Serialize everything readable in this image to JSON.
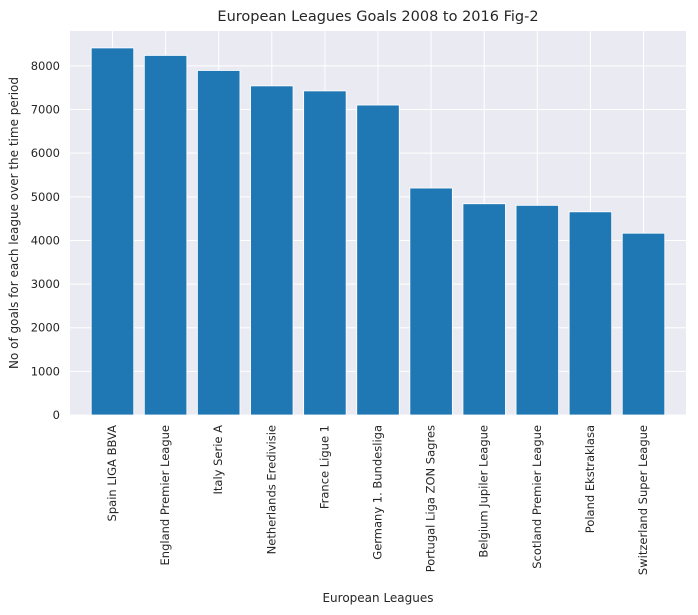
{
  "chart_data": {
    "type": "bar",
    "title": "European Leagues Goals 2008 to 2016 Fig-2",
    "xlabel": "European Leagues",
    "ylabel": "No of goals for each league over the time period",
    "categories": [
      "Spain LIGA BBVA",
      "England Premier League",
      "Italy Serie A",
      "Netherlands Eredivisie",
      "France Ligue 1",
      "Germany 1. Bundesliga",
      "Portugal Liga ZON Sagres",
      "Belgium Jupiler League",
      "Scotland Premier League",
      "Poland Ekstraklasa",
      "Switzerland Super League"
    ],
    "values": [
      8412,
      8240,
      7895,
      7542,
      7427,
      7103,
      5201,
      4841,
      4804,
      4656,
      4166
    ],
    "ylim": [
      0,
      8800
    ],
    "yticks": [
      0,
      1000,
      2000,
      3000,
      4000,
      5000,
      6000,
      7000,
      8000
    ],
    "grid": true,
    "colors": {
      "bar": "#1f77b4",
      "plot_background": "#eaeaf2",
      "grid": "#ffffff",
      "text": "#262626"
    }
  }
}
